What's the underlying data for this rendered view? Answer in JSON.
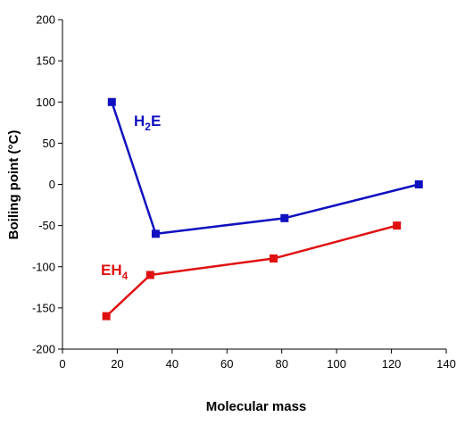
{
  "chart_data": {
    "type": "line",
    "xlabel": "Molecular mass",
    "ylabel": "Boiling point (°C)",
    "xlim": [
      0,
      140
    ],
    "ylim": [
      -200,
      200
    ],
    "xticks": [
      0,
      20,
      40,
      60,
      80,
      100,
      120,
      140
    ],
    "yticks": [
      -200,
      -150,
      -100,
      -50,
      0,
      50,
      100,
      150,
      200
    ],
    "grid": false,
    "legend": "none",
    "series": [
      {
        "name_main": "H",
        "name_sub": "2",
        "name_end": "E",
        "color": "#1010c0",
        "x": [
          18,
          34,
          81,
          130
        ],
        "y": [
          100,
          -60,
          -41,
          0
        ]
      },
      {
        "name_main": "EH",
        "name_sub": "4",
        "name_end": "",
        "color": "#e01010",
        "x": [
          16,
          32,
          77,
          122
        ],
        "y": [
          -160,
          -110,
          -90,
          -50
        ]
      }
    ]
  }
}
